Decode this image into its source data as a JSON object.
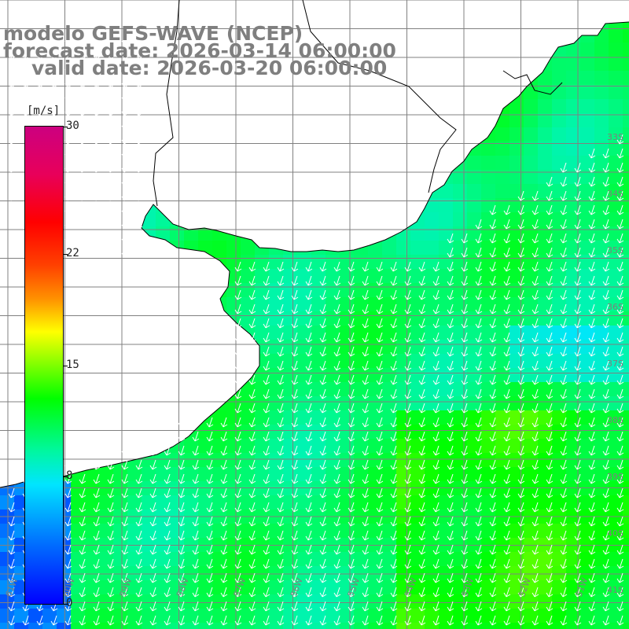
{
  "title": {
    "model": "modelo GEFS-WAVE (NCEP)",
    "forecast": "forecast date: 2026-03-14 06:00:00",
    "valid": "valid date: 2026-03-20 06:00:00"
  },
  "colorbar": {
    "unit": "[m/s]",
    "min": 0,
    "max": 30,
    "ticks": [
      {
        "value": 30,
        "label": "30"
      },
      {
        "value": 22,
        "label": "22"
      },
      {
        "value": 15,
        "label": "15"
      },
      {
        "value": 8,
        "label": "8"
      },
      {
        "value": 0,
        "label": "0"
      }
    ],
    "stops": [
      {
        "value": 0,
        "color": "#0000ff"
      },
      {
        "value": 4,
        "color": "#0072ff"
      },
      {
        "value": 8,
        "color": "#00e5ff"
      },
      {
        "value": 10,
        "color": "#00f7a0"
      },
      {
        "value": 13,
        "color": "#00ff00"
      },
      {
        "value": 15,
        "color": "#7fff00"
      },
      {
        "value": 17,
        "color": "#ffff00"
      },
      {
        "value": 19,
        "color": "#ff9000"
      },
      {
        "value": 21,
        "color": "#ff4000"
      },
      {
        "value": 24,
        "color": "#ff0000"
      },
      {
        "value": 27,
        "color": "#e8005a"
      },
      {
        "value": 30,
        "color": "#cc0080"
      }
    ]
  },
  "map": {
    "lon_labels": [
      "61W",
      "60W",
      "59W",
      "58W",
      "57W",
      "56W",
      "55W",
      "54W",
      "53W",
      "52W",
      "51W"
    ],
    "lat_labels": [
      "33S",
      "34S",
      "35S",
      "36S",
      "37S",
      "38S",
      "39S",
      "40S",
      "41S"
    ],
    "wind_direction": "from north-northeast",
    "typical_speed_ms": [
      9,
      13
    ]
  },
  "colors": {
    "land": "#ffffff",
    "grid": "#808080",
    "coast": "#000000",
    "arrow": "#ffffff",
    "label": "#7f7f7f"
  }
}
